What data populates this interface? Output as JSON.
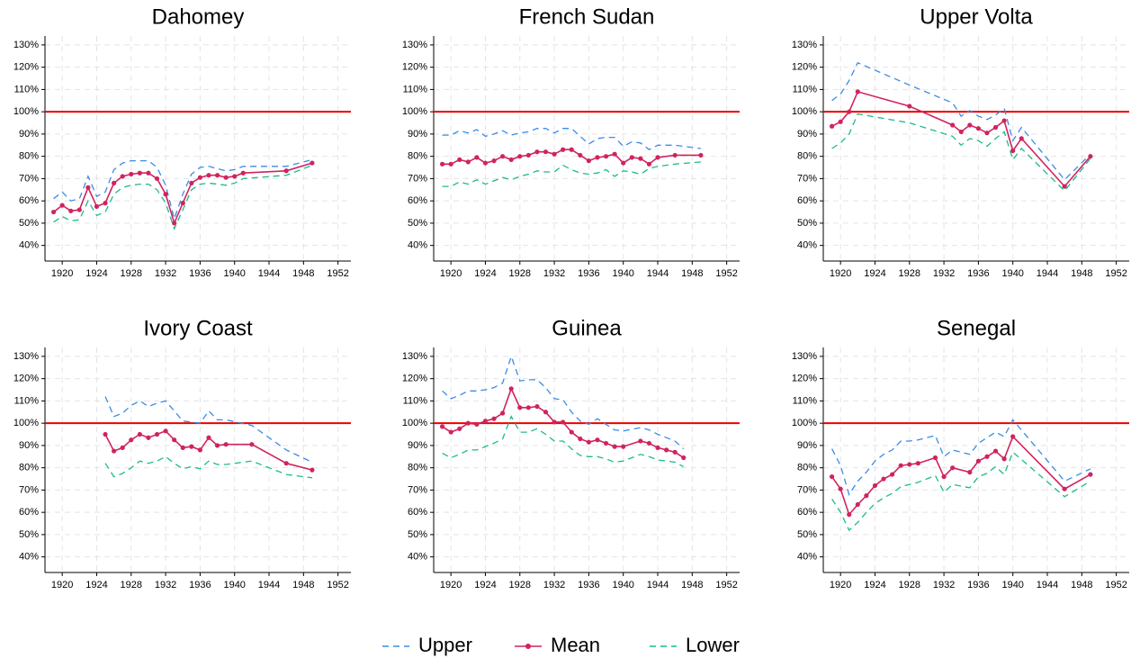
{
  "chart_data": [
    {
      "type": "line",
      "title": "Dahomey",
      "x": [
        1919,
        1920,
        1921,
        1922,
        1923,
        1924,
        1925,
        1926,
        1927,
        1928,
        1929,
        1930,
        1931,
        1932,
        1933,
        1934,
        1935,
        1936,
        1937,
        1938,
        1939,
        1940,
        1941,
        1946,
        1949
      ],
      "series": [
        {
          "name": "Upper",
          "color": "#3b8be6",
          "style": "dashed",
          "values": [
            61,
            64,
            60,
            61,
            71,
            62,
            64,
            74,
            77,
            78,
            78,
            78,
            75,
            67,
            52,
            63,
            72,
            75,
            75.5,
            74.5,
            73.5,
            74,
            75.5,
            75.5,
            78.5
          ]
        },
        {
          "name": "Mean",
          "color": "#d0235f",
          "style": "solid",
          "markers": true,
          "values": [
            55,
            58,
            55.5,
            56,
            66,
            57.5,
            59,
            68,
            71,
            72,
            72.5,
            72.5,
            70,
            63,
            50,
            59,
            68,
            70.5,
            71.5,
            71.5,
            70.5,
            71,
            72.5,
            73.5,
            77
          ]
        },
        {
          "name": "Lower",
          "color": "#1dba8c",
          "style": "dashed",
          "values": [
            50.5,
            53,
            51,
            51.5,
            60,
            53.5,
            55,
            63,
            66,
            67,
            67.5,
            67.5,
            65,
            59,
            47.5,
            56,
            65,
            67.5,
            68,
            67.5,
            67,
            68,
            70,
            71.5,
            76
          ]
        }
      ],
      "xlim": [
        1918,
        1953.5
      ],
      "xticks": [
        1920,
        1924,
        1928,
        1932,
        1936,
        1940,
        1944,
        1948,
        1952
      ],
      "ylim": [
        33,
        134
      ],
      "yticks": [
        {
          "value": 40,
          "label": "40%"
        },
        {
          "value": 50,
          "label": "50%"
        },
        {
          "value": 60,
          "label": "60%"
        },
        {
          "value": 70,
          "label": "70%"
        },
        {
          "value": 80,
          "label": "80%"
        },
        {
          "value": 90,
          "label": "90%"
        },
        {
          "value": 100,
          "label": "100%"
        },
        {
          "value": 110,
          "label": "110%"
        },
        {
          "value": 120,
          "label": "120%"
        },
        {
          "value": 130,
          "label": "130%"
        }
      ],
      "grid": true,
      "reference_line": 100,
      "reference_color": "#ee0000"
    },
    {
      "type": "line",
      "title": "French Sudan",
      "x": [
        1919,
        1920,
        1921,
        1922,
        1923,
        1924,
        1925,
        1926,
        1927,
        1928,
        1929,
        1930,
        1931,
        1932,
        1933,
        1934,
        1935,
        1936,
        1937,
        1938,
        1939,
        1940,
        1941,
        1942,
        1943,
        1944,
        1946,
        1949
      ],
      "series": [
        {
          "name": "Upper",
          "color": "#3b8be6",
          "style": "dashed",
          "values": [
            89.5,
            89.5,
            91.5,
            90.5,
            92,
            89,
            90,
            91.5,
            89.5,
            90.5,
            91,
            92.5,
            92.5,
            90.5,
            92.5,
            92.5,
            89,
            85.5,
            88,
            88.5,
            88.5,
            84.5,
            86.5,
            86,
            83,
            85,
            85,
            83.5
          ]
        },
        {
          "name": "Mean",
          "color": "#d0235f",
          "style": "solid",
          "markers": true,
          "values": [
            76.5,
            76.5,
            78.5,
            77.5,
            79.5,
            77,
            78,
            80,
            78.5,
            80,
            80.5,
            82,
            82,
            81,
            83,
            83,
            80.5,
            78,
            79.5,
            80,
            81,
            77,
            79.5,
            79,
            76.5,
            79.5,
            80.5,
            80.5
          ]
        },
        {
          "name": "Lower",
          "color": "#1dba8c",
          "style": "dashed",
          "values": [
            66.5,
            66.5,
            68.5,
            67.5,
            69.5,
            67.5,
            69,
            70.5,
            69.5,
            71,
            72,
            73.5,
            73,
            73,
            76,
            74,
            72.5,
            72,
            72.5,
            74,
            71,
            73.5,
            73,
            72,
            74.5,
            75.5,
            76.5,
            77.5
          ]
        }
      ],
      "xlim": [
        1918,
        1953.5
      ],
      "xticks": [
        1920,
        1924,
        1928,
        1932,
        1936,
        1940,
        1944,
        1948,
        1952
      ],
      "ylim": [
        33,
        134
      ],
      "yticks": [
        {
          "value": 40,
          "label": "40%"
        },
        {
          "value": 50,
          "label": "50%"
        },
        {
          "value": 60,
          "label": "60%"
        },
        {
          "value": 70,
          "label": "70%"
        },
        {
          "value": 80,
          "label": "80%"
        },
        {
          "value": 90,
          "label": "90%"
        },
        {
          "value": 100,
          "label": "100%"
        },
        {
          "value": 110,
          "label": "110%"
        },
        {
          "value": 120,
          "label": "120%"
        },
        {
          "value": 130,
          "label": "130%"
        }
      ],
      "grid": true,
      "reference_line": 100,
      "reference_color": "#ee0000"
    },
    {
      "type": "line",
      "title": "Upper Volta",
      "x": [
        1919,
        1920,
        1921,
        1922,
        1928,
        1933,
        1934,
        1935,
        1936,
        1937,
        1938,
        1939,
        1940,
        1941,
        1946,
        1949
      ],
      "series": [
        {
          "name": "Upper",
          "color": "#3b8be6",
          "style": "dashed",
          "values": [
            105,
            108,
            114,
            122,
            112,
            104,
            98,
            100.5,
            98,
            96.5,
            98.5,
            101.5,
            87,
            93,
            69.5,
            81
          ]
        },
        {
          "name": "Mean",
          "color": "#d0235f",
          "style": "solid",
          "markers": true,
          "values": [
            93.5,
            95.5,
            100,
            109,
            102.5,
            94,
            91,
            94,
            92.5,
            90.5,
            93,
            96,
            82.5,
            88,
            66.5,
            80
          ]
        },
        {
          "name": "Lower",
          "color": "#1dba8c",
          "style": "dashed",
          "values": [
            83.5,
            86,
            90,
            99,
            95,
            89,
            85,
            88,
            87,
            84.5,
            88,
            91,
            78.5,
            83.5,
            64.5,
            79
          ]
        }
      ],
      "xlim": [
        1918,
        1953.5
      ],
      "xticks": [
        1920,
        1924,
        1928,
        1932,
        1936,
        1940,
        1944,
        1948,
        1952
      ],
      "ylim": [
        33,
        134
      ],
      "yticks": [
        {
          "value": 40,
          "label": "40%"
        },
        {
          "value": 50,
          "label": "50%"
        },
        {
          "value": 60,
          "label": "60%"
        },
        {
          "value": 70,
          "label": "70%"
        },
        {
          "value": 80,
          "label": "80%"
        },
        {
          "value": 90,
          "label": "90%"
        },
        {
          "value": 100,
          "label": "100%"
        },
        {
          "value": 110,
          "label": "110%"
        },
        {
          "value": 120,
          "label": "120%"
        },
        {
          "value": 130,
          "label": "130%"
        }
      ],
      "grid": true,
      "reference_line": 100,
      "reference_color": "#ee0000"
    },
    {
      "type": "line",
      "title": "Ivory Coast",
      "x": [
        1925,
        1926,
        1927,
        1928,
        1929,
        1930,
        1931,
        1932,
        1933,
        1934,
        1935,
        1936,
        1937,
        1938,
        1939,
        1942,
        1946,
        1949
      ],
      "series": [
        {
          "name": "Upper",
          "color": "#3b8be6",
          "style": "dashed",
          "values": [
            112,
            103,
            104.5,
            108,
            110,
            107.5,
            109,
            110,
            105.5,
            101,
            100.5,
            100,
            105.5,
            101.5,
            101.5,
            99,
            88,
            82.5
          ]
        },
        {
          "name": "Mean",
          "color": "#d0235f",
          "style": "solid",
          "markers": true,
          "values": [
            95,
            87.5,
            89,
            92.5,
            95,
            93.5,
            95,
            96.5,
            92.5,
            89,
            89.5,
            88,
            93.5,
            90,
            90.5,
            90.5,
            82,
            79
          ]
        },
        {
          "name": "Lower",
          "color": "#1dba8c",
          "style": "dashed",
          "values": [
            82,
            76,
            77.5,
            80,
            83,
            82,
            83,
            85,
            82,
            79.5,
            80.5,
            79.5,
            83,
            81.5,
            81.5,
            83,
            77,
            75.5
          ]
        }
      ],
      "xlim": [
        1918,
        1953.5
      ],
      "xticks": [
        1920,
        1924,
        1928,
        1932,
        1936,
        1940,
        1944,
        1948,
        1952
      ],
      "ylim": [
        33,
        134
      ],
      "yticks": [
        {
          "value": 40,
          "label": "40%"
        },
        {
          "value": 50,
          "label": "50%"
        },
        {
          "value": 60,
          "label": "60%"
        },
        {
          "value": 70,
          "label": "70%"
        },
        {
          "value": 80,
          "label": "80%"
        },
        {
          "value": 90,
          "label": "90%"
        },
        {
          "value": 100,
          "label": "100%"
        },
        {
          "value": 110,
          "label": "110%"
        },
        {
          "value": 120,
          "label": "120%"
        },
        {
          "value": 130,
          "label": "130%"
        }
      ],
      "grid": true,
      "reference_line": 100,
      "reference_color": "#ee0000"
    },
    {
      "type": "line",
      "title": "Guinea",
      "x": [
        1919,
        1920,
        1921,
        1922,
        1923,
        1924,
        1925,
        1926,
        1927,
        1928,
        1929,
        1930,
        1931,
        1932,
        1933,
        1934,
        1935,
        1936,
        1937,
        1938,
        1939,
        1940,
        1942,
        1943,
        1944,
        1945,
        1946,
        1947
      ],
      "series": [
        {
          "name": "Upper",
          "color": "#3b8be6",
          "style": "dashed",
          "values": [
            114.5,
            111,
            112.5,
            114.5,
            114.5,
            115,
            116,
            118,
            130,
            119,
            119.5,
            119.5,
            116,
            111,
            110.5,
            105,
            101,
            99.5,
            102,
            99.5,
            97,
            96.5,
            98,
            97,
            95,
            93.5,
            92,
            88.5
          ]
        },
        {
          "name": "Mean",
          "color": "#d0235f",
          "style": "solid",
          "markers": true,
          "values": [
            98.5,
            96,
            97.5,
            100,
            99.5,
            101,
            102,
            104.5,
            115.5,
            107,
            107,
            107.5,
            105,
            100.5,
            100.5,
            96,
            93,
            91.5,
            92.5,
            91,
            89.5,
            89.5,
            92,
            91,
            89,
            88,
            87,
            84.5
          ]
        },
        {
          "name": "Lower",
          "color": "#1dba8c",
          "style": "dashed",
          "values": [
            86.5,
            84.5,
            86,
            88,
            88,
            89.5,
            91,
            93,
            103,
            96,
            96,
            97.5,
            95,
            92,
            92,
            88.5,
            85.5,
            85,
            85,
            84,
            82.5,
            83,
            86,
            85,
            83.5,
            83,
            82.5,
            80.5
          ]
        }
      ],
      "xlim": [
        1918,
        1953.5
      ],
      "xticks": [
        1920,
        1924,
        1928,
        1932,
        1936,
        1940,
        1944,
        1948,
        1952
      ],
      "ylim": [
        33,
        134
      ],
      "yticks": [
        {
          "value": 40,
          "label": "40%"
        },
        {
          "value": 50,
          "label": "50%"
        },
        {
          "value": 60,
          "label": "60%"
        },
        {
          "value": 70,
          "label": "70%"
        },
        {
          "value": 80,
          "label": "80%"
        },
        {
          "value": 90,
          "label": "90%"
        },
        {
          "value": 100,
          "label": "100%"
        },
        {
          "value": 110,
          "label": "110%"
        },
        {
          "value": 120,
          "label": "120%"
        },
        {
          "value": 130,
          "label": "130%"
        }
      ],
      "grid": true,
      "reference_line": 100,
      "reference_color": "#ee0000"
    },
    {
      "type": "line",
      "title": "Senegal",
      "x": [
        1919,
        1920,
        1921,
        1922,
        1923,
        1924,
        1925,
        1926,
        1927,
        1928,
        1929,
        1931,
        1932,
        1933,
        1935,
        1936,
        1937,
        1938,
        1939,
        1940,
        1946,
        1949
      ],
      "series": [
        {
          "name": "Upper",
          "color": "#3b8be6",
          "style": "dashed",
          "values": [
            88.5,
            81,
            68,
            74,
            78,
            83,
            86,
            88,
            92,
            92,
            92.5,
            94.5,
            85,
            88,
            86,
            91,
            93.5,
            96,
            94,
            101.5,
            74,
            79.5
          ]
        },
        {
          "name": "Mean",
          "color": "#d0235f",
          "style": "solid",
          "markers": true,
          "values": [
            76,
            70.5,
            59,
            63.5,
            67.5,
            72,
            75,
            77,
            81,
            81.5,
            82,
            84.5,
            76,
            80,
            78,
            83,
            85,
            87.5,
            84,
            94,
            70.5,
            77
          ]
        },
        {
          "name": "Lower",
          "color": "#1dba8c",
          "style": "dashed",
          "values": [
            66,
            60,
            52,
            55.5,
            60,
            64,
            66.5,
            68.5,
            71.5,
            72.5,
            73.5,
            76.5,
            69,
            72.5,
            71,
            76,
            77.5,
            80.5,
            77,
            87,
            67,
            74
          ]
        }
      ],
      "xlim": [
        1918,
        1953.5
      ],
      "xticks": [
        1920,
        1924,
        1928,
        1932,
        1936,
        1940,
        1944,
        1948,
        1952
      ],
      "ylim": [
        33,
        134
      ],
      "yticks": [
        {
          "value": 40,
          "label": "40%"
        },
        {
          "value": 50,
          "label": "50%"
        },
        {
          "value": 60,
          "label": "60%"
        },
        {
          "value": 70,
          "label": "70%"
        },
        {
          "value": 80,
          "label": "80%"
        },
        {
          "value": 90,
          "label": "90%"
        },
        {
          "value": 100,
          "label": "100%"
        },
        {
          "value": 110,
          "label": "110%"
        },
        {
          "value": 120,
          "label": "120%"
        },
        {
          "value": 130,
          "label": "130%"
        }
      ],
      "grid": true,
      "reference_line": 100,
      "reference_color": "#ee0000"
    }
  ]
}
